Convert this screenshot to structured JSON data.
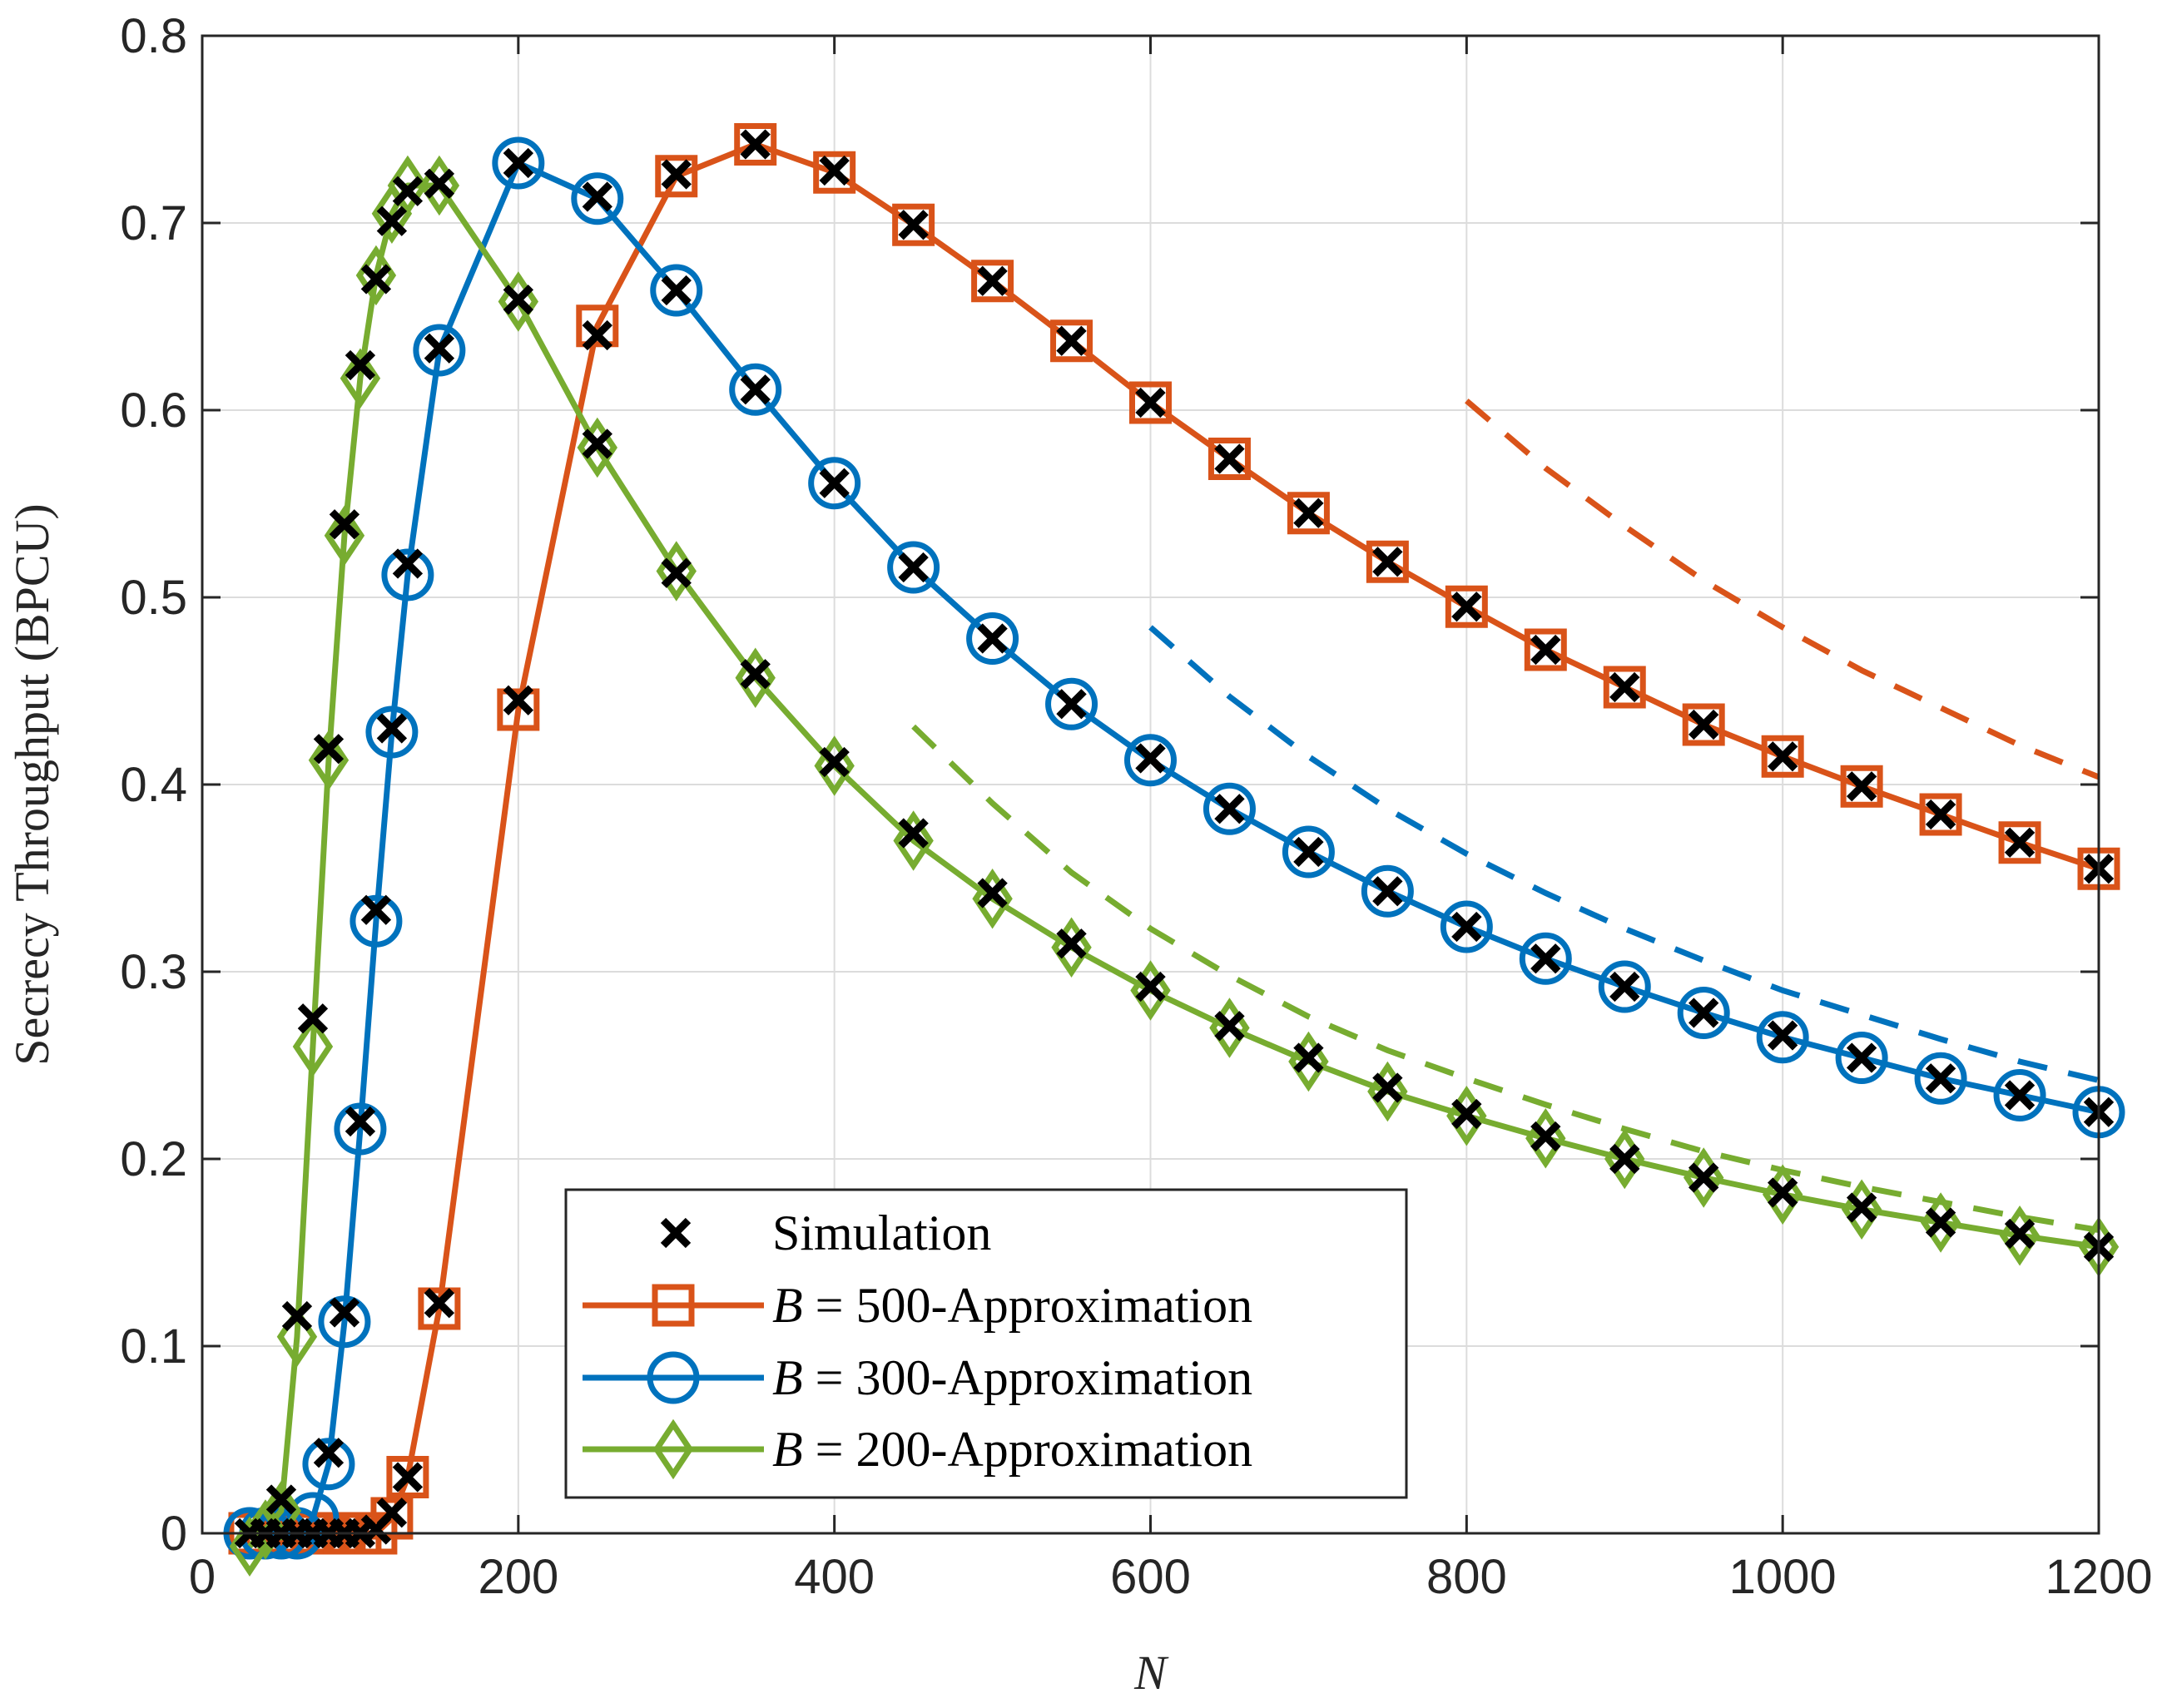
{
  "chart_data": {
    "type": "line",
    "title": "",
    "xlabel": "N",
    "ylabel": "Secrecy Throughput (BPCU)",
    "xlim": [
      0,
      1200
    ],
    "ylim": [
      0,
      0.8
    ],
    "xticks": [
      0,
      200,
      400,
      600,
      800,
      1000,
      1200
    ],
    "xtick_labels": [
      "0",
      "200",
      "400",
      "600",
      "800",
      "1000",
      "1200"
    ],
    "yticks": [
      0,
      0.1,
      0.2,
      0.3,
      0.4,
      0.5,
      0.6,
      0.7,
      0.8
    ],
    "ytick_labels": [
      "0",
      "0.1",
      "0.2",
      "0.3",
      "0.4",
      "0.5",
      "0.6",
      "0.7",
      "0.8"
    ],
    "grid": true,
    "legend_position": "bottom-center",
    "legend": [
      {
        "label": "Simulation",
        "marker": "x",
        "color": "#000000"
      },
      {
        "label_italic": "B",
        "label_rest": " = 500-Approximation",
        "marker": "square",
        "color": "#D95319"
      },
      {
        "label_italic": "B",
        "label_rest": " = 300-Approximation",
        "marker": "circle",
        "color": "#0072BD"
      },
      {
        "label_italic": "B",
        "label_rest": " = 200-Approximation",
        "marker": "diamond",
        "color": "#77AC30"
      }
    ],
    "series": [
      {
        "name": "B = 500-Approximation",
        "color": "#D95319",
        "marker": "square",
        "x": [
          30,
          40,
          50,
          60,
          70,
          80,
          90,
          100,
          110,
          120,
          130,
          150,
          200,
          250,
          300,
          350,
          400,
          450,
          500,
          550,
          600,
          650,
          700,
          750,
          800,
          850,
          900,
          950,
          1000,
          1050,
          1100,
          1150,
          1200
        ],
        "y": [
          0,
          0,
          0,
          0,
          0,
          0,
          0,
          0,
          0,
          0.008,
          0.03,
          0.12,
          0.44,
          0.645,
          0.725,
          0.742,
          0.727,
          0.699,
          0.669,
          0.637,
          0.604,
          0.574,
          0.545,
          0.519,
          0.495,
          0.472,
          0.452,
          0.432,
          0.415,
          0.399,
          0.384,
          0.369,
          0.355
        ]
      },
      {
        "name": "B = 300-Approximation",
        "color": "#0072BD",
        "marker": "circle",
        "x": [
          30,
          40,
          50,
          60,
          70,
          80,
          90,
          100,
          110,
          120,
          130,
          150,
          200,
          250,
          300,
          350,
          400,
          450,
          500,
          550,
          600,
          650,
          700,
          750,
          800,
          850,
          900,
          950,
          1000,
          1050,
          1100,
          1150,
          1200
        ],
        "y": [
          0,
          0,
          0,
          0,
          0.008,
          0.037,
          0.113,
          0.216,
          0.327,
          0.428,
          0.512,
          0.632,
          0.732,
          0.713,
          0.664,
          0.611,
          0.561,
          0.516,
          0.478,
          0.443,
          0.413,
          0.387,
          0.364,
          0.343,
          0.324,
          0.307,
          0.292,
          0.278,
          0.265,
          0.254,
          0.243,
          0.234,
          0.225
        ]
      },
      {
        "name": "B = 200-Approximation",
        "color": "#77AC30",
        "marker": "diamond",
        "x": [
          30,
          40,
          50,
          60,
          70,
          80,
          90,
          100,
          110,
          120,
          130,
          150,
          200,
          250,
          300,
          350,
          400,
          450,
          500,
          550,
          600,
          650,
          700,
          750,
          800,
          850,
          900,
          950,
          1000,
          1050,
          1100,
          1150,
          1200
        ],
        "y": [
          -0.007,
          0.002,
          0.012,
          0.105,
          0.26,
          0.413,
          0.533,
          0.617,
          0.672,
          0.705,
          0.72,
          0.72,
          0.658,
          0.58,
          0.514,
          0.457,
          0.41,
          0.37,
          0.339,
          0.313,
          0.29,
          0.27,
          0.252,
          0.236,
          0.223,
          0.211,
          0.2,
          0.19,
          0.181,
          0.173,
          0.166,
          0.159,
          0.153
        ]
      },
      {
        "name": "Simulation",
        "color": "#000000",
        "marker": "x",
        "points": [
          [
            30,
            0
          ],
          [
            40,
            0
          ],
          [
            50,
            0
          ],
          [
            60,
            0
          ],
          [
            70,
            0
          ],
          [
            80,
            0
          ],
          [
            90,
            0
          ],
          [
            100,
            0
          ],
          [
            110,
            0.002
          ],
          [
            120,
            0.011
          ],
          [
            130,
            0.03
          ],
          [
            150,
            0.123
          ],
          [
            200,
            0.445
          ],
          [
            250,
            0.64
          ],
          [
            300,
            0.726
          ],
          [
            350,
            0.742
          ],
          [
            400,
            0.728
          ],
          [
            450,
            0.699
          ],
          [
            500,
            0.669
          ],
          [
            550,
            0.637
          ],
          [
            600,
            0.604
          ],
          [
            650,
            0.574
          ],
          [
            700,
            0.545
          ],
          [
            750,
            0.519
          ],
          [
            800,
            0.495
          ],
          [
            850,
            0.472
          ],
          [
            900,
            0.452
          ],
          [
            950,
            0.432
          ],
          [
            1000,
            0.415
          ],
          [
            1050,
            0.399
          ],
          [
            1100,
            0.384
          ],
          [
            1150,
            0.369
          ],
          [
            1200,
            0.355
          ],
          [
            40,
            0
          ],
          [
            50,
            0
          ],
          [
            60,
            0
          ],
          [
            70,
            0
          ],
          [
            80,
            0.043
          ],
          [
            90,
            0.118
          ],
          [
            100,
            0.22
          ],
          [
            110,
            0.333
          ],
          [
            120,
            0.43
          ],
          [
            130,
            0.518
          ],
          [
            150,
            0.633
          ],
          [
            200,
            0.732
          ],
          [
            250,
            0.714
          ],
          [
            300,
            0.664
          ],
          [
            350,
            0.611
          ],
          [
            400,
            0.561
          ],
          [
            450,
            0.516
          ],
          [
            500,
            0.478
          ],
          [
            550,
            0.443
          ],
          [
            600,
            0.414
          ],
          [
            650,
            0.387
          ],
          [
            700,
            0.364
          ],
          [
            750,
            0.343
          ],
          [
            800,
            0.324
          ],
          [
            850,
            0.307
          ],
          [
            900,
            0.292
          ],
          [
            950,
            0.278
          ],
          [
            1000,
            0.266
          ],
          [
            1050,
            0.254
          ],
          [
            1100,
            0.243
          ],
          [
            1150,
            0.234
          ],
          [
            1200,
            0.225
          ],
          [
            50,
            0.018
          ],
          [
            60,
            0.116
          ],
          [
            70,
            0.275
          ],
          [
            80,
            0.419
          ],
          [
            90,
            0.539
          ],
          [
            100,
            0.624
          ],
          [
            110,
            0.67
          ],
          [
            120,
            0.701
          ],
          [
            130,
            0.717
          ],
          [
            150,
            0.721
          ],
          [
            200,
            0.659
          ],
          [
            250,
            0.582
          ],
          [
            300,
            0.513
          ],
          [
            350,
            0.459
          ],
          [
            400,
            0.412
          ],
          [
            450,
            0.374
          ],
          [
            500,
            0.342
          ],
          [
            550,
            0.315
          ],
          [
            600,
            0.292
          ],
          [
            650,
            0.271
          ],
          [
            700,
            0.254
          ],
          [
            750,
            0.238
          ],
          [
            800,
            0.224
          ],
          [
            850,
            0.212
          ],
          [
            900,
            0.2
          ],
          [
            950,
            0.19
          ],
          [
            1000,
            0.182
          ],
          [
            1050,
            0.174
          ],
          [
            1100,
            0.166
          ],
          [
            1150,
            0.16
          ],
          [
            1200,
            0.153
          ]
        ]
      },
      {
        "name": "B = 500 dashed",
        "color": "#D95319",
        "style": "dashed",
        "x": [
          800,
          850,
          900,
          950,
          1000,
          1050,
          1100,
          1150,
          1200
        ],
        "y": [
          0.605,
          0.569,
          0.538,
          0.509,
          0.484,
          0.461,
          0.441,
          0.421,
          0.404
        ]
      },
      {
        "name": "B = 300 dashed",
        "color": "#0072BD",
        "style": "dashed",
        "x": [
          600,
          650,
          700,
          750,
          800,
          850,
          900,
          950,
          1000,
          1050,
          1100,
          1150,
          1200
        ],
        "y": [
          0.484,
          0.447,
          0.415,
          0.387,
          0.363,
          0.342,
          0.323,
          0.306,
          0.29,
          0.277,
          0.264,
          0.252,
          0.242
        ]
      },
      {
        "name": "B = 200 dashed",
        "color": "#77AC30",
        "style": "dashed",
        "x": [
          450,
          500,
          550,
          600,
          650,
          700,
          750,
          800,
          850,
          900,
          950,
          1000,
          1050,
          1100,
          1150,
          1200
        ],
        "y": [
          0.431,
          0.39,
          0.353,
          0.323,
          0.298,
          0.276,
          0.258,
          0.243,
          0.229,
          0.216,
          0.204,
          0.194,
          0.185,
          0.177,
          0.169,
          0.162
        ]
      }
    ]
  }
}
